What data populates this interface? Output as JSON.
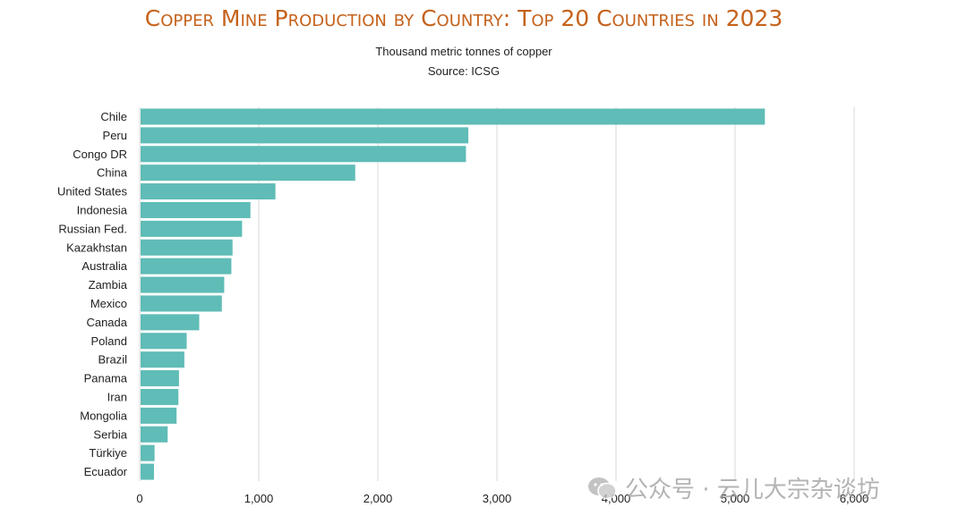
{
  "chart_data": {
    "type": "bar",
    "orientation": "horizontal",
    "title": "Copper Mine Production by Country: Top 20 Countries in 2023",
    "subtitle": "Thousand metric tonnes of copper",
    "source": "Source: ICSG",
    "categories": [
      "Chile",
      "Peru",
      "Congo DR",
      "China",
      "United States",
      "Indonesia",
      "Russian Fed.",
      "Kazakhstan",
      "Australia",
      "Zambia",
      "Mexico",
      "Canada",
      "Poland",
      "Brazil",
      "Panama",
      "Iran",
      "Mongolia",
      "Serbia",
      "Türkiye",
      "Ecuador"
    ],
    "values": [
      5250,
      2760,
      2740,
      1810,
      1140,
      930,
      860,
      780,
      770,
      710,
      690,
      500,
      395,
      375,
      330,
      325,
      310,
      235,
      125,
      120
    ],
    "xlim": [
      0,
      6000
    ],
    "xticks": [
      "0",
      "1,000",
      "2,000",
      "3,000",
      "4,000",
      "5,000",
      "6,000"
    ],
    "xtick_values": [
      0,
      1000,
      2000,
      3000,
      4000,
      5000,
      6000
    ],
    "grid": true,
    "bar_color": "#5fbcb6"
  },
  "watermark": "公众号 · 云儿大宗杂谈坊"
}
